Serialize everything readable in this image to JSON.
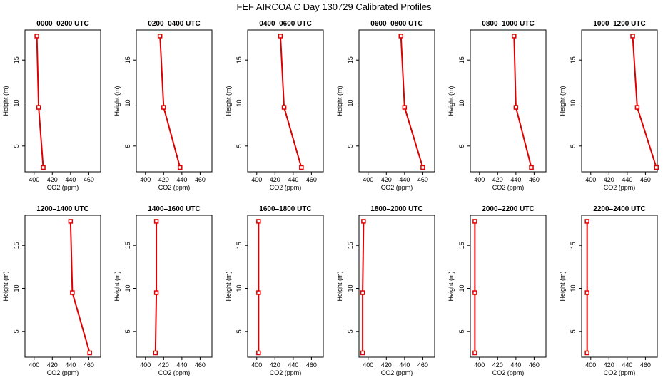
{
  "title": "FEF AIRCOA C  Day 130729  Calibrated Profiles",
  "colors": {
    "series": "#dd0000",
    "axis": "#000000"
  },
  "chart_data": {
    "type": "line",
    "xlabel": "CO2 (ppm)",
    "ylabel": "Height (m)",
    "xlim": [
      390,
      473
    ],
    "ylim": [
      2,
      18.5
    ],
    "xticks": [
      400,
      420,
      440,
      460
    ],
    "yticks": [
      5,
      10,
      15
    ],
    "heights": [
      17.8,
      9.5,
      2.5
    ],
    "panels": [
      {
        "title": "0000–0200 UTC",
        "co2": [
          403,
          405,
          410
        ]
      },
      {
        "title": "0200–0400 UTC",
        "co2": [
          416,
          420,
          438
        ]
      },
      {
        "title": "0400–0600 UTC",
        "co2": [
          426,
          430,
          449
        ]
      },
      {
        "title": "0600–0800 UTC",
        "co2": [
          436,
          440,
          460
        ]
      },
      {
        "title": "0800–1000 UTC",
        "co2": [
          438,
          440,
          457
        ]
      },
      {
        "title": "1000–1200 UTC",
        "co2": [
          446,
          451,
          472
        ]
      },
      {
        "title": "1200–1400 UTC",
        "co2": [
          440,
          442,
          461
        ]
      },
      {
        "title": "1400–1600 UTC",
        "co2": [
          412,
          412,
          411
        ]
      },
      {
        "title": "1600–1800 UTC",
        "co2": [
          402,
          402,
          402
        ]
      },
      {
        "title": "1800–2000 UTC",
        "co2": [
          395,
          394,
          394
        ]
      },
      {
        "title": "2000–2200 UTC",
        "co2": [
          395,
          395,
          395
        ]
      },
      {
        "title": "2200–2400 UTC",
        "co2": [
          396,
          396,
          396
        ]
      }
    ]
  }
}
